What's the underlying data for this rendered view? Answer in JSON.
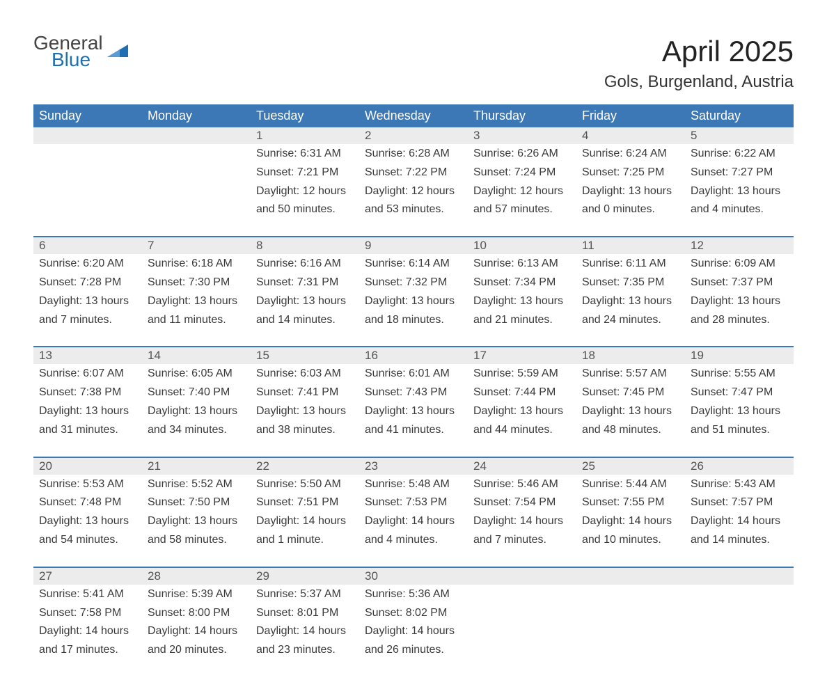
{
  "brand": {
    "line1": "General",
    "line2": "Blue",
    "flag_color": "#1f6fb2"
  },
  "title": {
    "month": "April 2025",
    "location": "Gols, Burgenland, Austria"
  },
  "colors": {
    "header_bg": "#3b78b5",
    "header_text": "#ffffff",
    "daynum_bg": "#ececec",
    "border": "#3b78b5",
    "body_text": "#3a3a3a"
  },
  "day_headers": [
    "Sunday",
    "Monday",
    "Tuesday",
    "Wednesday",
    "Thursday",
    "Friday",
    "Saturday"
  ],
  "weeks": [
    [
      null,
      null,
      {
        "n": "1",
        "sr": "Sunrise: 6:31 AM",
        "ss": "Sunset: 7:21 PM",
        "dl1": "Daylight: 12 hours",
        "dl2": "and 50 minutes."
      },
      {
        "n": "2",
        "sr": "Sunrise: 6:28 AM",
        "ss": "Sunset: 7:22 PM",
        "dl1": "Daylight: 12 hours",
        "dl2": "and 53 minutes."
      },
      {
        "n": "3",
        "sr": "Sunrise: 6:26 AM",
        "ss": "Sunset: 7:24 PM",
        "dl1": "Daylight: 12 hours",
        "dl2": "and 57 minutes."
      },
      {
        "n": "4",
        "sr": "Sunrise: 6:24 AM",
        "ss": "Sunset: 7:25 PM",
        "dl1": "Daylight: 13 hours",
        "dl2": "and 0 minutes."
      },
      {
        "n": "5",
        "sr": "Sunrise: 6:22 AM",
        "ss": "Sunset: 7:27 PM",
        "dl1": "Daylight: 13 hours",
        "dl2": "and 4 minutes."
      }
    ],
    [
      {
        "n": "6",
        "sr": "Sunrise: 6:20 AM",
        "ss": "Sunset: 7:28 PM",
        "dl1": "Daylight: 13 hours",
        "dl2": "and 7 minutes."
      },
      {
        "n": "7",
        "sr": "Sunrise: 6:18 AM",
        "ss": "Sunset: 7:30 PM",
        "dl1": "Daylight: 13 hours",
        "dl2": "and 11 minutes."
      },
      {
        "n": "8",
        "sr": "Sunrise: 6:16 AM",
        "ss": "Sunset: 7:31 PM",
        "dl1": "Daylight: 13 hours",
        "dl2": "and 14 minutes."
      },
      {
        "n": "9",
        "sr": "Sunrise: 6:14 AM",
        "ss": "Sunset: 7:32 PM",
        "dl1": "Daylight: 13 hours",
        "dl2": "and 18 minutes."
      },
      {
        "n": "10",
        "sr": "Sunrise: 6:13 AM",
        "ss": "Sunset: 7:34 PM",
        "dl1": "Daylight: 13 hours",
        "dl2": "and 21 minutes."
      },
      {
        "n": "11",
        "sr": "Sunrise: 6:11 AM",
        "ss": "Sunset: 7:35 PM",
        "dl1": "Daylight: 13 hours",
        "dl2": "and 24 minutes."
      },
      {
        "n": "12",
        "sr": "Sunrise: 6:09 AM",
        "ss": "Sunset: 7:37 PM",
        "dl1": "Daylight: 13 hours",
        "dl2": "and 28 minutes."
      }
    ],
    [
      {
        "n": "13",
        "sr": "Sunrise: 6:07 AM",
        "ss": "Sunset: 7:38 PM",
        "dl1": "Daylight: 13 hours",
        "dl2": "and 31 minutes."
      },
      {
        "n": "14",
        "sr": "Sunrise: 6:05 AM",
        "ss": "Sunset: 7:40 PM",
        "dl1": "Daylight: 13 hours",
        "dl2": "and 34 minutes."
      },
      {
        "n": "15",
        "sr": "Sunrise: 6:03 AM",
        "ss": "Sunset: 7:41 PM",
        "dl1": "Daylight: 13 hours",
        "dl2": "and 38 minutes."
      },
      {
        "n": "16",
        "sr": "Sunrise: 6:01 AM",
        "ss": "Sunset: 7:43 PM",
        "dl1": "Daylight: 13 hours",
        "dl2": "and 41 minutes."
      },
      {
        "n": "17",
        "sr": "Sunrise: 5:59 AM",
        "ss": "Sunset: 7:44 PM",
        "dl1": "Daylight: 13 hours",
        "dl2": "and 44 minutes."
      },
      {
        "n": "18",
        "sr": "Sunrise: 5:57 AM",
        "ss": "Sunset: 7:45 PM",
        "dl1": "Daylight: 13 hours",
        "dl2": "and 48 minutes."
      },
      {
        "n": "19",
        "sr": "Sunrise: 5:55 AM",
        "ss": "Sunset: 7:47 PM",
        "dl1": "Daylight: 13 hours",
        "dl2": "and 51 minutes."
      }
    ],
    [
      {
        "n": "20",
        "sr": "Sunrise: 5:53 AM",
        "ss": "Sunset: 7:48 PM",
        "dl1": "Daylight: 13 hours",
        "dl2": "and 54 minutes."
      },
      {
        "n": "21",
        "sr": "Sunrise: 5:52 AM",
        "ss": "Sunset: 7:50 PM",
        "dl1": "Daylight: 13 hours",
        "dl2": "and 58 minutes."
      },
      {
        "n": "22",
        "sr": "Sunrise: 5:50 AM",
        "ss": "Sunset: 7:51 PM",
        "dl1": "Daylight: 14 hours",
        "dl2": "and 1 minute."
      },
      {
        "n": "23",
        "sr": "Sunrise: 5:48 AM",
        "ss": "Sunset: 7:53 PM",
        "dl1": "Daylight: 14 hours",
        "dl2": "and 4 minutes."
      },
      {
        "n": "24",
        "sr": "Sunrise: 5:46 AM",
        "ss": "Sunset: 7:54 PM",
        "dl1": "Daylight: 14 hours",
        "dl2": "and 7 minutes."
      },
      {
        "n": "25",
        "sr": "Sunrise: 5:44 AM",
        "ss": "Sunset: 7:55 PM",
        "dl1": "Daylight: 14 hours",
        "dl2": "and 10 minutes."
      },
      {
        "n": "26",
        "sr": "Sunrise: 5:43 AM",
        "ss": "Sunset: 7:57 PM",
        "dl1": "Daylight: 14 hours",
        "dl2": "and 14 minutes."
      }
    ],
    [
      {
        "n": "27",
        "sr": "Sunrise: 5:41 AM",
        "ss": "Sunset: 7:58 PM",
        "dl1": "Daylight: 14 hours",
        "dl2": "and 17 minutes."
      },
      {
        "n": "28",
        "sr": "Sunrise: 5:39 AM",
        "ss": "Sunset: 8:00 PM",
        "dl1": "Daylight: 14 hours",
        "dl2": "and 20 minutes."
      },
      {
        "n": "29",
        "sr": "Sunrise: 5:37 AM",
        "ss": "Sunset: 8:01 PM",
        "dl1": "Daylight: 14 hours",
        "dl2": "and 23 minutes."
      },
      {
        "n": "30",
        "sr": "Sunrise: 5:36 AM",
        "ss": "Sunset: 8:02 PM",
        "dl1": "Daylight: 14 hours",
        "dl2": "and 26 minutes."
      },
      null,
      null,
      null
    ]
  ]
}
